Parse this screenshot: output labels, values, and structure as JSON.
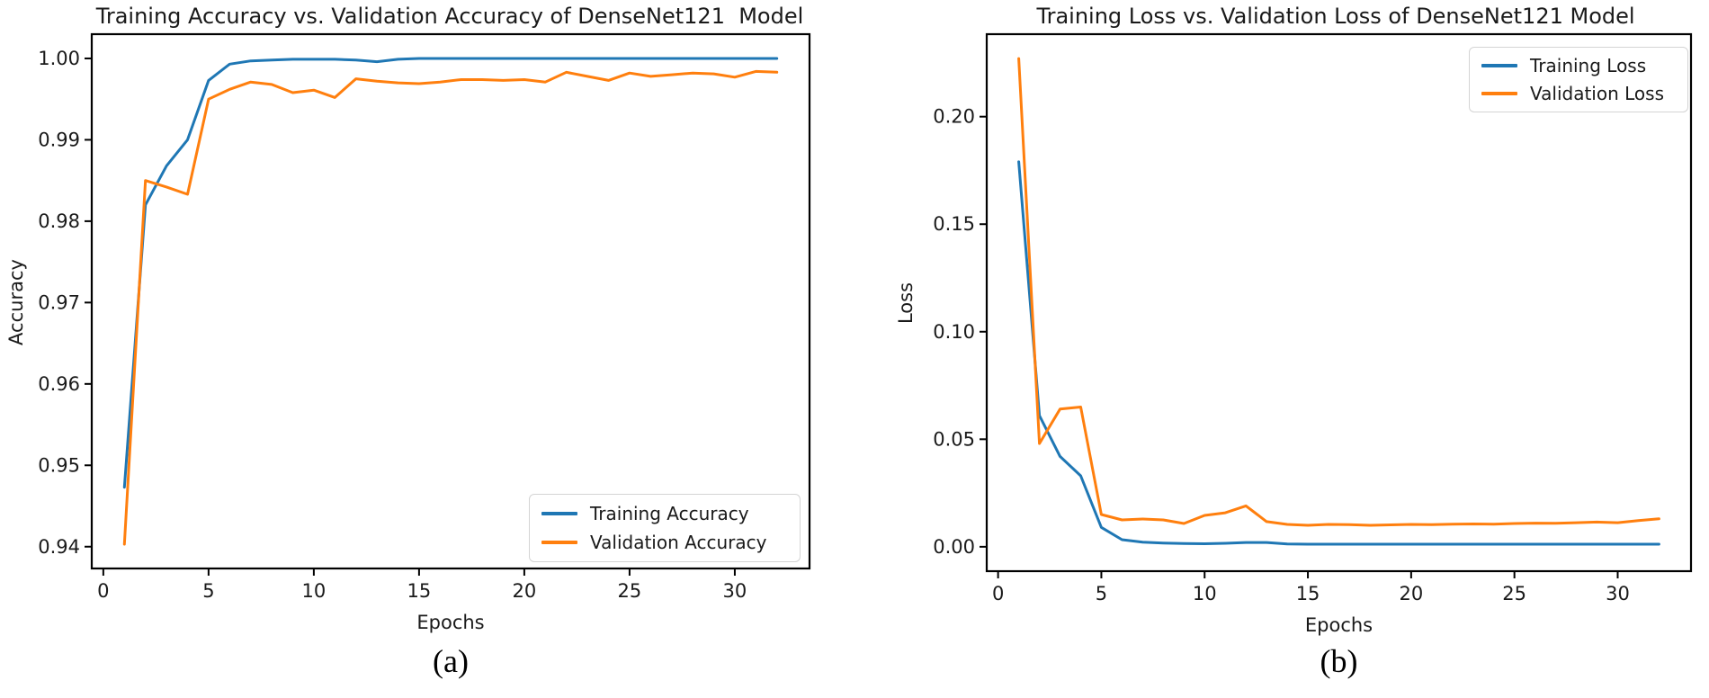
{
  "page": {
    "background": "#ffffff"
  },
  "figures": [
    {
      "caption": "(a)"
    },
    {
      "caption": "(b)"
    }
  ],
  "chart_data": [
    {
      "type": "line",
      "title": "Training Accuracy vs. Validation Accuracy of DenseNet121  Model",
      "xlabel": "Epochs",
      "ylabel": "Accuracy",
      "x": [
        1,
        2,
        3,
        4,
        5,
        6,
        7,
        8,
        9,
        10,
        11,
        12,
        13,
        14,
        15,
        16,
        17,
        18,
        19,
        20,
        21,
        22,
        23,
        24,
        25,
        26,
        27,
        28,
        29,
        30,
        31,
        32
      ],
      "series": [
        {
          "name": "Training Accuracy",
          "color": "#1f77b4",
          "values": [
            0.9473,
            0.982,
            0.9868,
            0.99,
            0.9973,
            0.9993,
            0.9997,
            0.9998,
            0.9999,
            0.9999,
            0.9999,
            0.9998,
            0.9996,
            0.9999,
            1.0,
            1.0,
            1.0,
            1.0,
            1.0,
            1.0,
            1.0,
            1.0,
            1.0,
            1.0,
            1.0,
            1.0,
            1.0,
            1.0,
            1.0,
            1.0,
            1.0,
            1.0
          ]
        },
        {
          "name": "Validation Accuracy",
          "color": "#ff7f0e",
          "values": [
            0.9403,
            0.985,
            0.9842,
            0.9833,
            0.995,
            0.9962,
            0.9971,
            0.9968,
            0.9958,
            0.9961,
            0.9952,
            0.9975,
            0.9972,
            0.997,
            0.9969,
            0.9971,
            0.9974,
            0.9974,
            0.9973,
            0.9974,
            0.9971,
            0.9983,
            0.9978,
            0.9973,
            0.9982,
            0.9978,
            0.998,
            0.9982,
            0.9981,
            0.9977,
            0.9984,
            0.9983
          ]
        }
      ],
      "xlim": [
        -0.55,
        33.55
      ],
      "ylim": [
        0.93732,
        1.00298
      ],
      "xticks": [
        0,
        5,
        10,
        15,
        20,
        25,
        30
      ],
      "xtick_labels": [
        "0",
        "5",
        "10",
        "15",
        "20",
        "25",
        "30"
      ],
      "yticks": [
        0.94,
        0.95,
        0.96,
        0.97,
        0.98,
        0.99,
        1.0
      ],
      "ytick_labels": [
        "0.94",
        "0.95",
        "0.96",
        "0.97",
        "0.98",
        "0.99",
        "1.00"
      ],
      "grid": false,
      "legend_position": "lower right"
    },
    {
      "type": "line",
      "title": "Training Loss vs. Validation Loss of DenseNet121 Model",
      "xlabel": "Epochs",
      "ylabel": "Loss",
      "x": [
        1,
        2,
        3,
        4,
        5,
        6,
        7,
        8,
        9,
        10,
        11,
        12,
        13,
        14,
        15,
        16,
        17,
        18,
        19,
        20,
        21,
        22,
        23,
        24,
        25,
        26,
        27,
        28,
        29,
        30,
        31,
        32
      ],
      "series": [
        {
          "name": "Training Loss",
          "color": "#1f77b4",
          "values": [
            0.179,
            0.061,
            0.042,
            0.033,
            0.009,
            0.0033,
            0.0021,
            0.0017,
            0.0015,
            0.0014,
            0.0016,
            0.002,
            0.002,
            0.0013,
            0.0012,
            0.0012,
            0.0012,
            0.0012,
            0.0012,
            0.0012,
            0.0012,
            0.0012,
            0.0012,
            0.0012,
            0.0012,
            0.0012,
            0.0012,
            0.0012,
            0.0012,
            0.0012,
            0.0012,
            0.0012
          ]
        },
        {
          "name": "Validation Loss",
          "color": "#ff7f0e",
          "values": [
            0.227,
            0.048,
            0.064,
            0.065,
            0.015,
            0.0125,
            0.0129,
            0.0125,
            0.0108,
            0.0146,
            0.0158,
            0.019,
            0.0117,
            0.0104,
            0.01,
            0.0104,
            0.0103,
            0.01,
            0.0102,
            0.0104,
            0.0103,
            0.0105,
            0.0106,
            0.0105,
            0.0108,
            0.011,
            0.0109,
            0.0112,
            0.0115,
            0.0112,
            0.0122,
            0.013
          ]
        }
      ],
      "xlim": [
        -0.55,
        33.55
      ],
      "ylim": [
        -0.01135,
        0.23835
      ],
      "xticks": [
        0,
        5,
        10,
        15,
        20,
        25,
        30
      ],
      "xtick_labels": [
        "0",
        "5",
        "10",
        "15",
        "20",
        "25",
        "30"
      ],
      "yticks": [
        0.0,
        0.05,
        0.1,
        0.15,
        0.2
      ],
      "ytick_labels": [
        "0.00",
        "0.05",
        "0.10",
        "0.15",
        "0.20"
      ],
      "grid": false,
      "legend_position": "upper right"
    }
  ]
}
